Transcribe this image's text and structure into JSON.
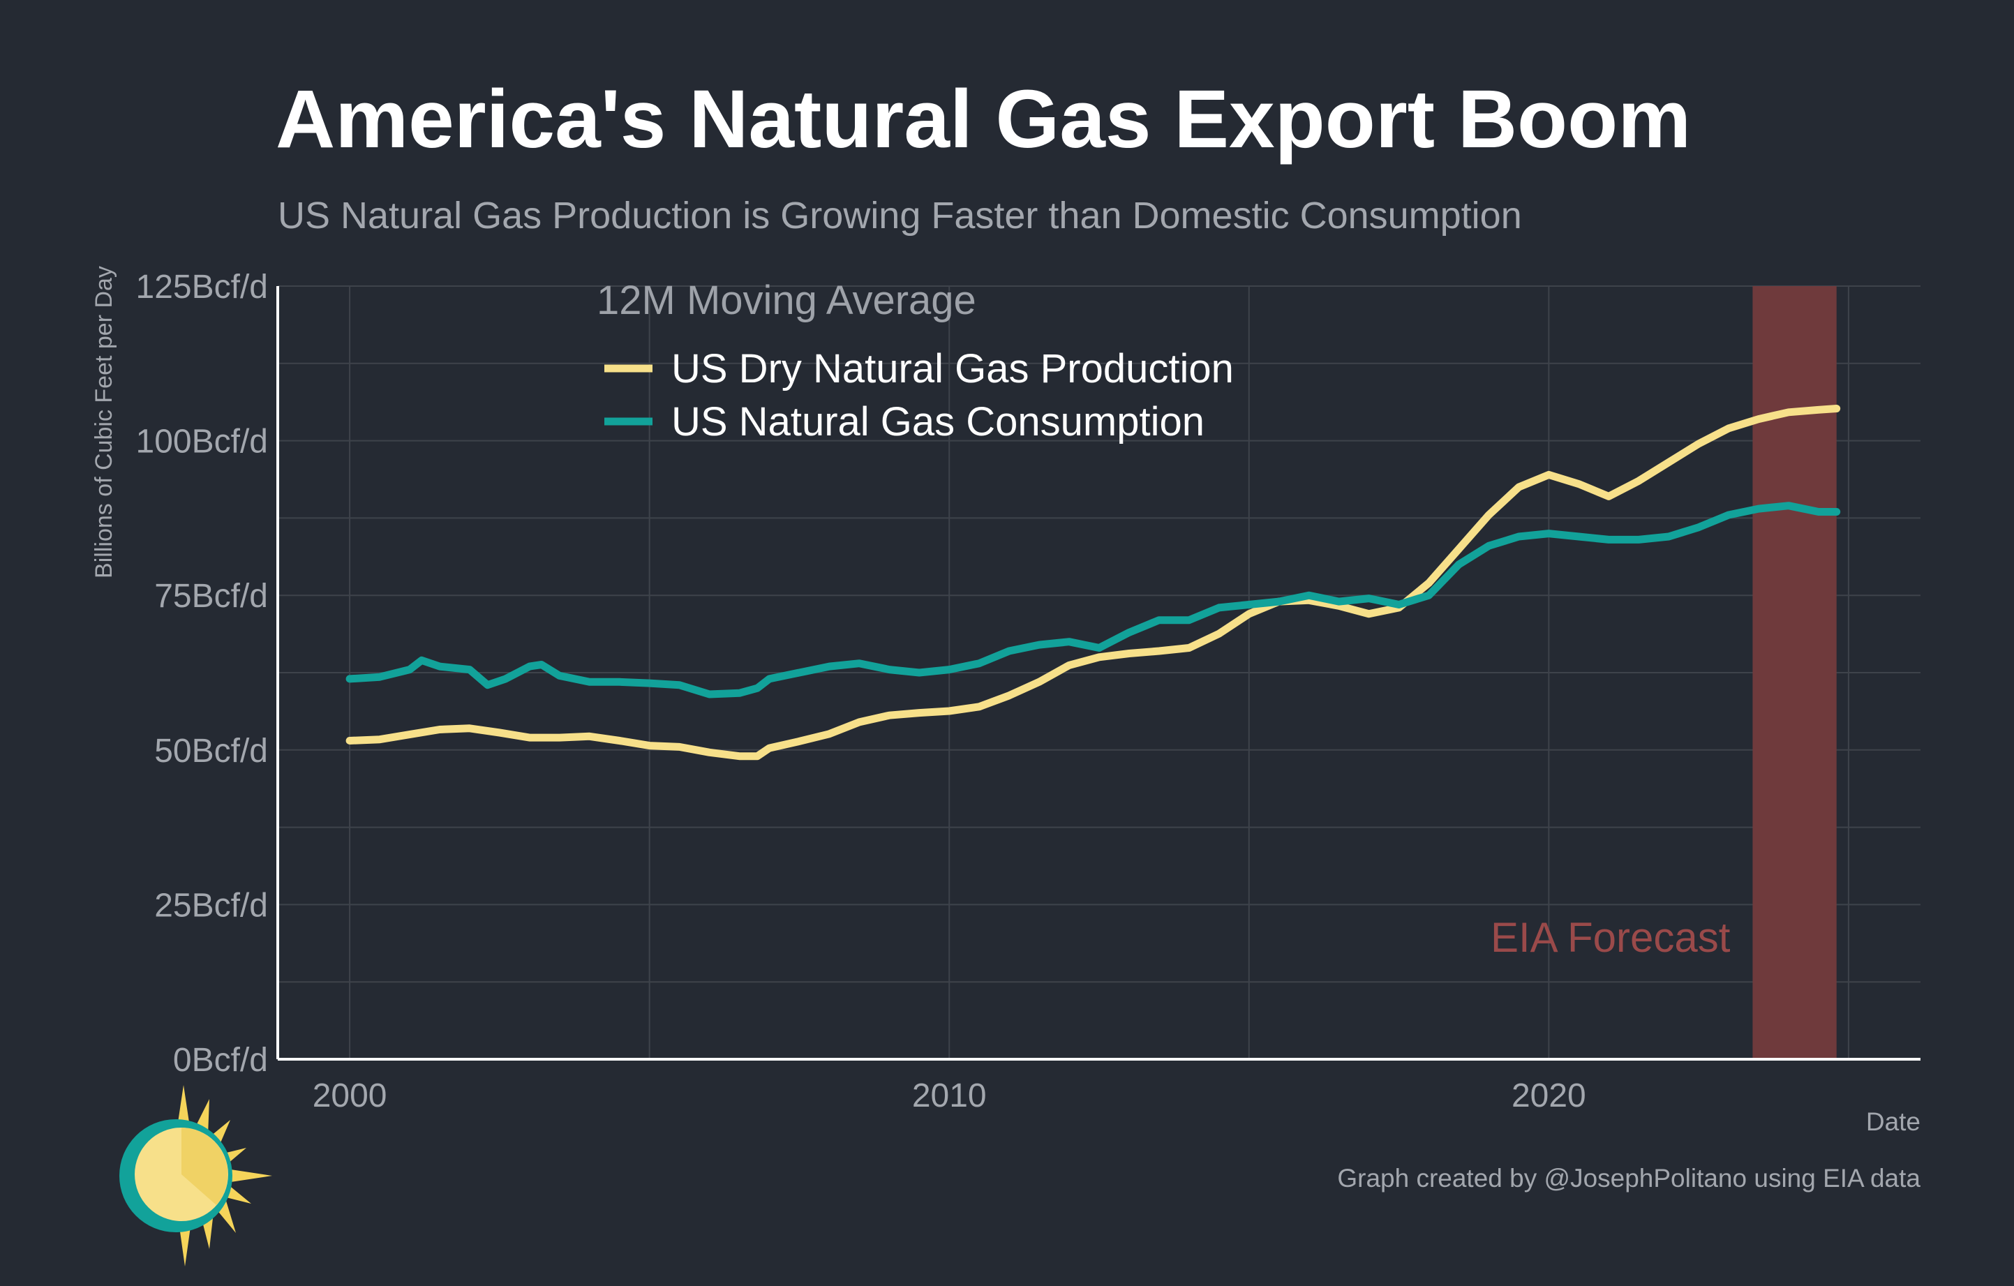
{
  "title": "America's Natural Gas Export Boom",
  "subtitle": "US Natural Gas Production is Growing Faster than Domestic Consumption",
  "credit": "Graph created by @JosephPolitano using EIA data",
  "chart_data": {
    "type": "line",
    "xlabel": "Date",
    "ylabel": "Billions of Cubic Feet per Day",
    "xlim": [
      1998.8,
      2026.2
    ],
    "ylim": [
      0,
      125
    ],
    "x_ticks": [
      2000,
      2010,
      2020
    ],
    "x_tick_labels": [
      "2000",
      "2010",
      "2020"
    ],
    "y_ticks": [
      0,
      25,
      50,
      75,
      100,
      125
    ],
    "y_tick_labels": [
      "0Bcf/d",
      "25Bcf/d",
      "50Bcf/d",
      "75Bcf/d",
      "100Bcf/d",
      "125Bcf/d"
    ],
    "grid": true,
    "legend": {
      "title": "12M Moving Average",
      "placement": "top-left",
      "entries": [
        "US Dry Natural Gas Production",
        "US Natural Gas Consumption"
      ]
    },
    "forecast": {
      "label": "EIA Forecast",
      "x_start": 2023.4,
      "x_end": 2024.8,
      "color": "#6f3a3c",
      "label_color": "#9a4a4a"
    },
    "series": [
      {
        "name": "US Dry Natural Gas Production",
        "color": "#f7e08a",
        "x": [
          2000.0,
          2000.5,
          2001.0,
          2001.5,
          2002.0,
          2002.5,
          2003.0,
          2003.5,
          2004.0,
          2004.5,
          2005.0,
          2005.5,
          2006.0,
          2006.5,
          2006.8,
          2007.0,
          2007.5,
          2008.0,
          2008.5,
          2009.0,
          2009.5,
          2010.0,
          2010.5,
          2011.0,
          2011.5,
          2012.0,
          2012.5,
          2013.0,
          2013.5,
          2014.0,
          2014.5,
          2015.0,
          2015.5,
          2016.0,
          2016.5,
          2017.0,
          2017.5,
          2018.0,
          2018.5,
          2019.0,
          2019.5,
          2020.0,
          2020.5,
          2021.0,
          2021.5,
          2022.0,
          2022.5,
          2023.0,
          2023.5,
          2024.0,
          2024.5,
          2024.8
        ],
        "y": [
          51.5,
          51.7,
          52.5,
          53.3,
          53.5,
          52.8,
          52.0,
          52.0,
          52.2,
          51.5,
          50.7,
          50.5,
          49.6,
          49.0,
          49.0,
          50.3,
          51.4,
          52.6,
          54.5,
          55.6,
          56.0,
          56.3,
          57.0,
          58.8,
          61.0,
          63.7,
          65.0,
          65.6,
          66.0,
          66.5,
          68.8,
          72.0,
          74.0,
          74.2,
          73.3,
          72.0,
          73.0,
          77.0,
          82.5,
          88.0,
          92.5,
          94.5,
          93.0,
          91.0,
          93.5,
          96.5,
          99.5,
          102.0,
          103.5,
          104.6,
          105.0,
          105.2
        ]
      },
      {
        "name": "US Natural Gas Consumption",
        "color": "#12a29a",
        "x": [
          2000.0,
          2000.5,
          2001.0,
          2001.2,
          2001.5,
          2002.0,
          2002.3,
          2002.6,
          2003.0,
          2003.2,
          2003.5,
          2004.0,
          2004.5,
          2005.0,
          2005.5,
          2006.0,
          2006.5,
          2006.8,
          2007.0,
          2007.5,
          2008.0,
          2008.5,
          2009.0,
          2009.5,
          2010.0,
          2010.5,
          2011.0,
          2011.5,
          2012.0,
          2012.5,
          2013.0,
          2013.5,
          2014.0,
          2014.5,
          2015.0,
          2015.5,
          2016.0,
          2016.5,
          2017.0,
          2017.5,
          2018.0,
          2018.5,
          2019.0,
          2019.5,
          2020.0,
          2020.5,
          2021.0,
          2021.5,
          2022.0,
          2022.5,
          2023.0,
          2023.5,
          2024.0,
          2024.5,
          2024.8
        ],
        "y": [
          61.5,
          61.8,
          63.0,
          64.5,
          63.5,
          63.0,
          60.5,
          61.5,
          63.5,
          63.8,
          62.0,
          61.0,
          61.0,
          60.8,
          60.5,
          59.0,
          59.2,
          60.0,
          61.5,
          62.5,
          63.5,
          64.0,
          63.0,
          62.5,
          63.0,
          64.0,
          66.0,
          67.0,
          67.5,
          66.5,
          69.0,
          71.0,
          71.0,
          73.0,
          73.5,
          74.0,
          75.0,
          74.0,
          74.5,
          73.5,
          75.0,
          80.0,
          83.0,
          84.5,
          85.0,
          84.5,
          84.0,
          84.0,
          84.5,
          86.0,
          88.0,
          89.0,
          89.5,
          88.5,
          88.5
        ]
      }
    ]
  }
}
